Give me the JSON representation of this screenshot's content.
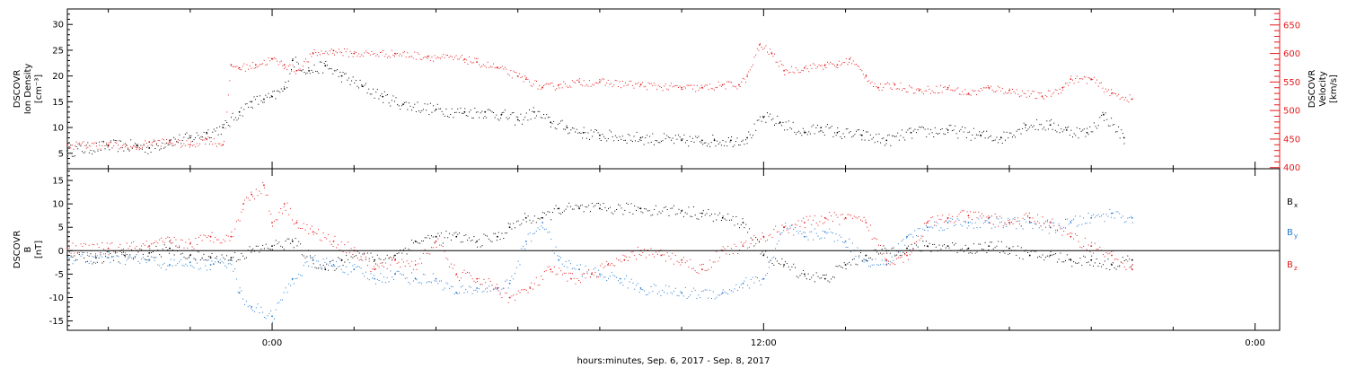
{
  "chart_data": [
    {
      "type": "scatter",
      "panel": "top",
      "ylabel_left": [
        "DSCOVR",
        "Ion Density",
        "[cm⁻³]"
      ],
      "ylabel_right": [
        "DSCOVR",
        "Velocity",
        "[km/s]"
      ],
      "y_left_ticks": [
        "5",
        "10",
        "15",
        "20",
        "25",
        "30"
      ],
      "y_right_ticks": [
        "400",
        "450",
        "500",
        "550",
        "600",
        "650"
      ],
      "ylim_left": [
        2,
        33
      ],
      "ylim_right": [
        398,
        678
      ],
      "xlim_hours": [
        -5,
        24.6
      ],
      "series": [
        {
          "name": "Ion Density",
          "axis": "left",
          "color": "#000000",
          "x": [
            -5,
            -4,
            -3.3,
            -3,
            -2.5,
            -2,
            -1.6,
            -1.2,
            -0.8,
            -0.5,
            -0.2,
            0,
            0.3,
            0.5,
            0.9,
            1.3,
            1.7,
            2.2,
            2.7,
            3.2,
            4,
            4.7,
            5.2,
            5.6,
            6,
            6.4,
            6.8,
            7.2,
            7.6,
            8,
            9,
            10,
            10.5,
            10.8,
            11.2,
            11.6,
            12,
            12.4,
            13,
            13.4,
            13.8,
            14.4,
            15,
            15.6,
            16.5,
            17.3,
            17.8,
            18.4,
            19,
            19.4,
            19.9,
            20.3,
            20.8
          ],
          "y": [
            5.5,
            6.5,
            6.5,
            6,
            7.5,
            8,
            9,
            10,
            13,
            15,
            15.5,
            16,
            17.5,
            23,
            21,
            22,
            20,
            18,
            16,
            14.5,
            13.5,
            13,
            13,
            12.5,
            11.5,
            13,
            11,
            10,
            9,
            8.5,
            8,
            7.5,
            7.5,
            7.5,
            7.5,
            8,
            12,
            11,
            9,
            10,
            9,
            8.5,
            7.5,
            9,
            9.5,
            8.5,
            8,
            10.5,
            10.5,
            9.5,
            9,
            12.5,
            8
          ]
        },
        {
          "name": "Velocity",
          "axis": "right",
          "color": "#e41a1c",
          "x": [
            -5,
            -4,
            -3.3,
            -3,
            -2.5,
            -2,
            -1.6,
            -1.2,
            -1,
            -0.8,
            -0.4,
            0,
            0.3,
            0.6,
            1,
            1.5,
            2,
            3,
            3.8,
            4.7,
            5,
            5.5,
            6,
            6.2,
            6.6,
            7,
            7.5,
            8,
            9,
            10,
            10.5,
            11,
            11.4,
            11.6,
            11.9,
            12.2,
            12.5,
            13,
            13.5,
            13.8,
            14.1,
            14.5,
            14.8,
            15.2,
            15.8,
            16.5,
            17,
            17.5,
            18,
            18.8,
            19.3,
            19.5,
            20,
            20.5,
            21
          ],
          "y": [
            440,
            440,
            435,
            445,
            445,
            440,
            450,
            440,
            580,
            575,
            580,
            590,
            580,
            570,
            600,
            605,
            600,
            600,
            595,
            590,
            585,
            575,
            560,
            555,
            540,
            545,
            550,
            550,
            545,
            540,
            540,
            545,
            545,
            560,
            615,
            600,
            570,
            575,
            580,
            580,
            590,
            560,
            540,
            545,
            535,
            540,
            530,
            540,
            535,
            525,
            540,
            555,
            555,
            530,
            520
          ]
        }
      ]
    },
    {
      "type": "scatter",
      "panel": "bottom",
      "ylabel_left": [
        "DSCOVR",
        "B",
        "[nT]"
      ],
      "y_ticks": [
        "15",
        "10",
        "5",
        "0",
        "-5",
        "-10",
        "-15"
      ],
      "ylim": [
        -17,
        17.5
      ],
      "xlim_hours": [
        -5,
        24.6
      ],
      "zero_line": true,
      "series": [
        {
          "name": "B",
          "sub": "x",
          "color": "#000000",
          "x": [
            -5,
            -4.3,
            -3.6,
            -3,
            -2.5,
            -2,
            -1.5,
            -1,
            -0.5,
            0,
            0.5,
            1,
            1.3,
            1.7,
            2,
            2.5,
            3,
            3.5,
            4,
            4.5,
            5,
            5.5,
            5.8,
            6.2,
            6.6,
            7,
            7.5,
            8,
            9,
            10,
            10.5,
            11,
            11.5,
            12,
            12.5,
            13,
            13.5,
            14,
            14.5,
            15,
            15.5,
            16,
            16.5,
            17,
            17.5,
            18,
            18.5,
            19,
            19.5,
            20,
            20.5,
            21
          ],
          "y": [
            -1,
            -1.5,
            -1,
            -0.5,
            0.5,
            -1,
            -1.5,
            -1.5,
            0,
            1,
            2,
            -2,
            -4,
            -2,
            0,
            -2,
            -1,
            2,
            3,
            3,
            2,
            3,
            5,
            7,
            7,
            9,
            9,
            9,
            9,
            8.5,
            8,
            7,
            6,
            -1,
            -3,
            -5,
            -6,
            -3,
            -1,
            0,
            0.5,
            1,
            1,
            0.5,
            1,
            0.5,
            -1,
            -1,
            -2,
            -2,
            -3,
            -2
          ]
        },
        {
          "name": "B",
          "sub": "y",
          "color": "#1f78d1",
          "x": [
            -5,
            -4,
            -3,
            -2.5,
            -2,
            -1.5,
            -1,
            -0.8,
            -0.5,
            0,
            0.5,
            1,
            1.5,
            2,
            2.5,
            3,
            3.5,
            4,
            4.5,
            5,
            5.5,
            5.8,
            6.2,
            6.6,
            7,
            7.5,
            8,
            8.5,
            9,
            10,
            11,
            11.5,
            12,
            12.5,
            13,
            13.5,
            14,
            14.5,
            15,
            15.5,
            16,
            16.5,
            17,
            17.5,
            18,
            18.5,
            19,
            19.5,
            20,
            20.5,
            21
          ],
          "y": [
            -1.5,
            -1.5,
            -2,
            -3,
            -2.5,
            -3,
            -2,
            -9,
            -12,
            -14,
            -6,
            -2,
            -3,
            -4,
            -6,
            -5,
            -6,
            -6,
            -9,
            -8,
            -8,
            -7,
            2,
            6,
            -2,
            -4,
            -5,
            -6,
            -8,
            -9,
            -9,
            -7,
            -6,
            5,
            3,
            4,
            2,
            -2,
            -3,
            3,
            5,
            6,
            6,
            6,
            6,
            6,
            5,
            6,
            7,
            8,
            7
          ]
        },
        {
          "name": "B",
          "sub": "z",
          "color": "#e41a1c",
          "x": [
            -5,
            -4,
            -3,
            -2.5,
            -2,
            -1.5,
            -1,
            -0.7,
            -0.5,
            -0.2,
            0,
            0.3,
            0.6,
            1,
            1.5,
            2,
            2.5,
            3,
            3.5,
            4,
            4.5,
            5,
            5.5,
            5.8,
            6.3,
            6.8,
            7.3,
            7.8,
            8.2,
            8.6,
            9,
            9.5,
            10,
            10.5,
            11,
            11.5,
            12,
            12.5,
            13,
            13.5,
            14,
            14.5,
            15,
            15.5,
            16,
            16.5,
            17,
            17.5,
            18,
            18.5,
            19,
            19.5,
            20,
            20.5,
            21
          ],
          "y": [
            0.5,
            0.5,
            1,
            2,
            1.5,
            3,
            3,
            10,
            12,
            14,
            6,
            10,
            6,
            4,
            2,
            0,
            -4,
            -2,
            -3,
            2,
            -5,
            -6,
            -8,
            -10,
            -8,
            -4,
            -6,
            -5,
            -3,
            -2,
            0,
            -1,
            -2,
            -4,
            0,
            1,
            3,
            5,
            6,
            7,
            7,
            6,
            -2,
            -1,
            6,
            7,
            7.5,
            7,
            6,
            7,
            6,
            3,
            1,
            -1,
            -4
          ]
        }
      ]
    }
  ],
  "axis": {
    "tick_labels": [
      {
        "h": 0,
        "label": "0:00"
      },
      {
        "h": 12,
        "label": "12:00"
      },
      {
        "h": 24,
        "label": "0:00"
      }
    ],
    "xlabel": "hours:minutes, Sep.  6, 2017 - Sep.  8, 2017"
  },
  "legend": {
    "bx": {
      "base": "B",
      "sub": "x",
      "color": "#000000"
    },
    "by": {
      "base": "B",
      "sub": "y",
      "color": "#1f78d1"
    },
    "bz": {
      "base": "B",
      "sub": "z",
      "color": "#e41a1c"
    }
  },
  "colors": {
    "density": "#000000",
    "velocity": "#e41a1c",
    "bx": "#000000",
    "by": "#1f78d1",
    "bz": "#e41a1c"
  }
}
